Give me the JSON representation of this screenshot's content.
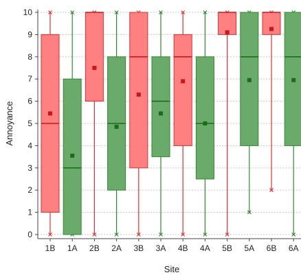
{
  "chart_data": {
    "type": "box",
    "title": "",
    "xlabel": "Site",
    "ylabel": "Annoyance",
    "ylim": [
      0,
      10
    ],
    "yticks": [
      0,
      1,
      2,
      3,
      4,
      5,
      6,
      7,
      8,
      9,
      10
    ],
    "grid": "horizontal dotted",
    "categories": [
      "1B",
      "1A",
      "2B",
      "2A",
      "3B",
      "3A",
      "4B",
      "4A",
      "5B",
      "5A",
      "6B",
      "6A"
    ],
    "colors": {
      "B": "#ff8080",
      "A": "#6aaa6a"
    },
    "boxes": [
      {
        "category": "1B",
        "group": "B",
        "whisker_low": 0,
        "q1": 1,
        "median": 5,
        "q3": 9,
        "whisker_high": 10,
        "mean": 5.45
      },
      {
        "category": "1A",
        "group": "A",
        "whisker_low": 0,
        "q1": 0,
        "median": 3,
        "q3": 7,
        "whisker_high": 10,
        "mean": 3.55
      },
      {
        "category": "2B",
        "group": "B",
        "whisker_low": 0,
        "q1": 6,
        "median": 10,
        "q3": 10,
        "whisker_high": 10,
        "mean": 7.5
      },
      {
        "category": "2A",
        "group": "A",
        "whisker_low": 0,
        "q1": 2,
        "median": 5,
        "q3": 8,
        "whisker_high": 10,
        "mean": 4.85
      },
      {
        "category": "3B",
        "group": "B",
        "whisker_low": 0,
        "q1": 3,
        "median": 8,
        "q3": 10,
        "whisker_high": 10,
        "mean": 6.3
      },
      {
        "category": "3A",
        "group": "A",
        "whisker_low": 0,
        "q1": 3.5,
        "median": 6,
        "q3": 8,
        "whisker_high": 10,
        "mean": 5.45
      },
      {
        "category": "4B",
        "group": "B",
        "whisker_low": 0,
        "q1": 4,
        "median": 8,
        "q3": 9,
        "whisker_high": 10,
        "mean": 6.9
      },
      {
        "category": "4A",
        "group": "A",
        "whisker_low": 0,
        "q1": 2.5,
        "median": 5,
        "q3": 8,
        "whisker_high": 10,
        "mean": 5.0
      },
      {
        "category": "5B",
        "group": "B",
        "whisker_low": 0,
        "q1": 9,
        "median": 10,
        "q3": 10,
        "whisker_high": 10,
        "mean": 9.1
      },
      {
        "category": "5A",
        "group": "A",
        "whisker_low": 1,
        "q1": 4,
        "median": 8,
        "q3": 10,
        "whisker_high": 10,
        "mean": 6.95
      },
      {
        "category": "6B",
        "group": "B",
        "whisker_low": 2,
        "q1": 9,
        "median": 10,
        "q3": 10,
        "whisker_high": 10,
        "mean": 9.25
      },
      {
        "category": "6A",
        "group": "A",
        "whisker_low": 0,
        "q1": 4,
        "median": 8,
        "q3": 10,
        "whisker_high": 10,
        "mean": 6.95
      }
    ]
  }
}
